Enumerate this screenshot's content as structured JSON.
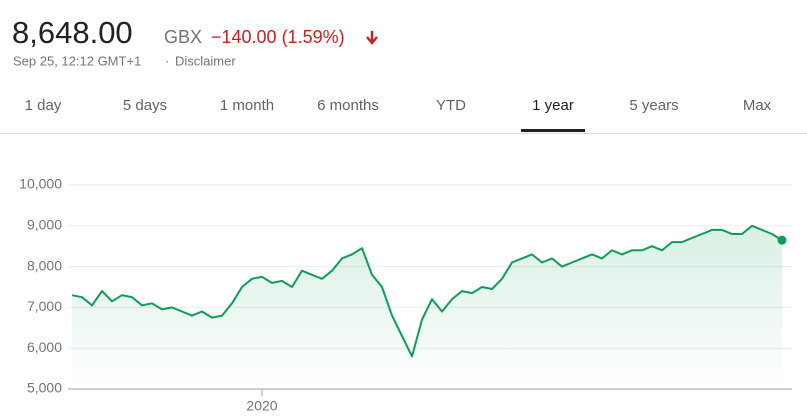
{
  "header": {
    "price": "8,648.00",
    "currency": "GBX",
    "change": "−140.00 (1.59%)",
    "timestamp": "Sep 25, 12:12 GMT+1",
    "separator": "·",
    "disclaimer": "Disclaimer"
  },
  "tabs": {
    "items": [
      "1 day",
      "5 days",
      "1 month",
      "6 months",
      "YTD",
      "1 year",
      "5 years",
      "Max"
    ],
    "selected_index": 5
  },
  "chart_data": {
    "type": "line",
    "color": "#0f9d58",
    "grid": true,
    "categories": [
      null,
      null,
      null,
      null,
      null,
      null,
      null,
      null,
      null,
      null,
      null,
      null,
      null,
      null,
      null,
      null,
      null,
      null,
      null,
      "2020",
      null,
      null,
      null,
      null,
      null,
      null,
      null,
      null,
      null,
      null,
      null,
      null,
      null,
      null,
      null,
      null,
      null,
      null,
      null,
      null,
      null,
      null,
      null,
      null,
      null,
      null,
      null,
      null,
      null,
      null,
      null,
      null,
      null,
      null,
      null,
      null,
      null,
      null,
      null,
      null,
      null,
      null,
      null,
      null,
      null,
      null,
      null,
      null,
      null,
      null,
      null,
      null
    ],
    "values": [
      7300,
      7250,
      7050,
      7400,
      7150,
      7300,
      7250,
      7050,
      7100,
      6950,
      7000,
      6900,
      6800,
      6900,
      6750,
      6800,
      7100,
      7500,
      7700,
      7750,
      7600,
      7650,
      7500,
      7900,
      7800,
      7700,
      7900,
      8200,
      8300,
      8450,
      7800,
      7500,
      6800,
      6300,
      5800,
      6700,
      7200,
      6900,
      7200,
      7400,
      7350,
      7500,
      7450,
      7700,
      8100,
      8200,
      8300,
      8100,
      8200,
      8000,
      8100,
      8200,
      8300,
      8200,
      8400,
      8300,
      8400,
      8400,
      8500,
      8400,
      8600,
      8600,
      8700,
      8800,
      8900,
      8900,
      8800,
      8800,
      9000,
      8900,
      8800,
      8648
    ],
    "ylim": [
      5000,
      10000
    ],
    "yticks": [
      {
        "value": 5000,
        "label": "5,000"
      },
      {
        "value": 6000,
        "label": "6,000"
      },
      {
        "value": 7000,
        "label": "7,000"
      },
      {
        "value": 8000,
        "label": "8,000"
      },
      {
        "value": 9000,
        "label": "9,000"
      },
      {
        "value": 10000,
        "label": "10,000"
      }
    ]
  }
}
